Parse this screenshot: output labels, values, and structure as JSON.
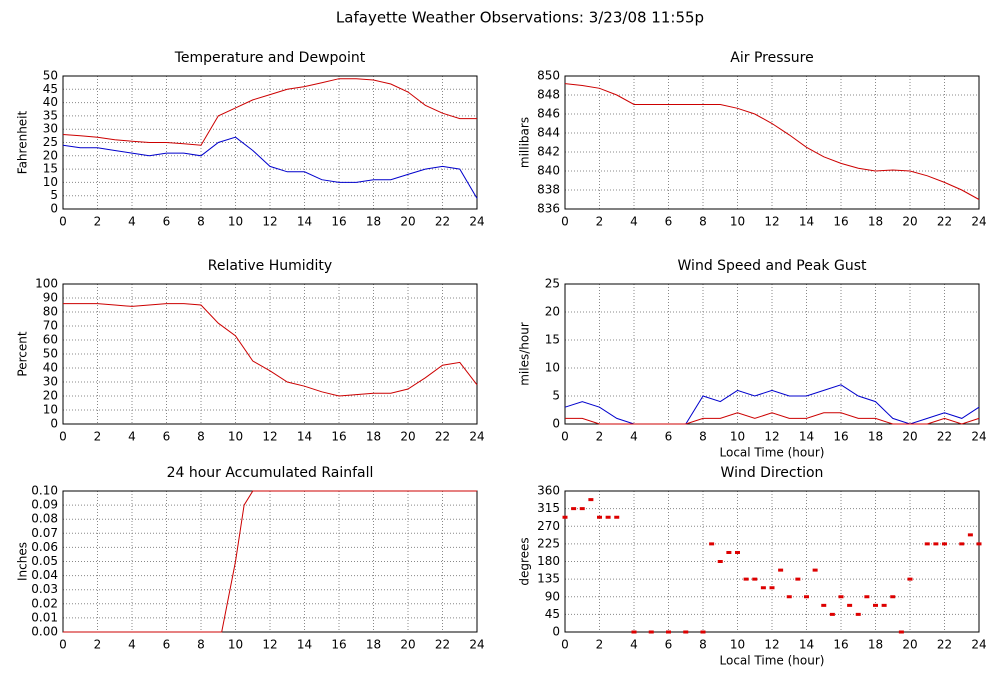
{
  "title": "Lafayette Weather Observations: 3/23/08 11:55p",
  "chart_data": [
    {
      "type": "line",
      "title": "Temperature and Dewpoint",
      "ylabel": "Fahrenheit",
      "x": [
        0,
        1,
        2,
        3,
        4,
        5,
        6,
        7,
        8,
        9,
        10,
        11,
        12,
        13,
        14,
        15,
        16,
        17,
        18,
        19,
        20,
        21,
        22,
        23,
        24
      ],
      "series": [
        {
          "color": "#cc0000",
          "values": [
            28,
            27.5,
            27,
            26,
            25.5,
            25,
            25,
            24.5,
            24,
            35,
            38,
            41,
            43,
            45,
            46,
            47.5,
            49,
            49,
            48.5,
            47,
            44,
            39,
            36,
            34,
            34
          ]
        },
        {
          "color": "#0000cc",
          "values": [
            24,
            23,
            23,
            22,
            21,
            20,
            21,
            21,
            20,
            25,
            27,
            22,
            16,
            14,
            14,
            11,
            10,
            10,
            11,
            11,
            13,
            15,
            16,
            15,
            4
          ]
        }
      ],
      "xlim": [
        0,
        24
      ],
      "xticks": [
        0,
        2,
        4,
        6,
        8,
        10,
        12,
        14,
        16,
        18,
        20,
        22,
        24
      ],
      "ylim": [
        0,
        50
      ],
      "yticks": [
        0,
        5,
        10,
        15,
        20,
        25,
        30,
        35,
        40,
        45,
        50
      ],
      "grid": true
    },
    {
      "type": "line",
      "title": "Air Pressure",
      "ylabel": "millibars",
      "x": [
        0,
        1,
        2,
        3,
        4,
        5,
        6,
        7,
        8,
        9,
        10,
        11,
        12,
        13,
        14,
        15,
        16,
        17,
        18,
        19,
        20,
        21,
        22,
        23,
        24
      ],
      "series": [
        {
          "color": "#cc0000",
          "values": [
            849.2,
            849,
            848.7,
            848,
            847,
            847,
            847,
            847,
            847,
            847,
            846.6,
            846,
            845,
            843.8,
            842.5,
            841.5,
            840.8,
            840.3,
            840,
            840.1,
            840,
            839.5,
            838.8,
            838,
            837
          ]
        }
      ],
      "xlim": [
        0,
        24
      ],
      "xticks": [
        0,
        2,
        4,
        6,
        8,
        10,
        12,
        14,
        16,
        18,
        20,
        22,
        24
      ],
      "ylim": [
        836,
        850
      ],
      "yticks": [
        836,
        838,
        840,
        842,
        844,
        846,
        848,
        850
      ],
      "grid": true
    },
    {
      "type": "line",
      "title": "Relative Humidity",
      "ylabel": "Percent",
      "x": [
        0,
        1,
        2,
        3,
        4,
        5,
        6,
        7,
        8,
        9,
        10,
        11,
        12,
        13,
        14,
        15,
        16,
        17,
        18,
        19,
        20,
        21,
        22,
        23,
        24
      ],
      "series": [
        {
          "color": "#cc0000",
          "values": [
            86,
            86,
            86,
            85,
            84,
            85,
            86,
            86,
            85,
            72,
            63,
            45,
            38,
            30,
            27,
            23,
            20,
            21,
            22,
            22,
            25,
            33,
            42,
            44,
            28
          ]
        }
      ],
      "xlim": [
        0,
        24
      ],
      "xticks": [
        0,
        2,
        4,
        6,
        8,
        10,
        12,
        14,
        16,
        18,
        20,
        22,
        24
      ],
      "ylim": [
        0,
        100
      ],
      "yticks": [
        0,
        10,
        20,
        30,
        40,
        50,
        60,
        70,
        80,
        90,
        100
      ],
      "grid": true
    },
    {
      "type": "line",
      "title": "Wind Speed and Peak Gust",
      "ylabel": "miles/hour",
      "xlabel": "Local Time (hour)",
      "x": [
        0,
        1,
        2,
        3,
        4,
        5,
        6,
        7,
        8,
        9,
        10,
        11,
        12,
        13,
        14,
        15,
        16,
        17,
        18,
        19,
        20,
        21,
        22,
        23,
        24
      ],
      "series": [
        {
          "color": "#0000cc",
          "values": [
            3,
            4,
            3,
            1,
            0,
            0,
            0,
            0,
            5,
            4,
            6,
            5,
            6,
            5,
            5,
            6,
            7,
            5,
            4,
            1,
            0,
            1,
            2,
            1,
            3
          ]
        },
        {
          "color": "#cc0000",
          "values": [
            1,
            1,
            0,
            0,
            0,
            0,
            0,
            0,
            1,
            1,
            2,
            1,
            2,
            1,
            1,
            2,
            2,
            1,
            1,
            0,
            0,
            0,
            1,
            0,
            1
          ]
        }
      ],
      "xlim": [
        0,
        24
      ],
      "xticks": [
        0,
        2,
        4,
        6,
        8,
        10,
        12,
        14,
        16,
        18,
        20,
        22,
        24
      ],
      "ylim": [
        0,
        25
      ],
      "yticks": [
        0,
        5,
        10,
        15,
        20,
        25
      ],
      "grid": true
    },
    {
      "type": "line",
      "title": "24 hour Accumulated Rainfall",
      "ylabel": "Inches",
      "x": [
        0,
        9.2,
        10,
        10.5,
        11,
        24
      ],
      "series": [
        {
          "color": "#cc0000",
          "values": [
            0,
            0,
            0.05,
            0.09,
            0.1,
            0.1
          ]
        }
      ],
      "xlim": [
        0,
        24
      ],
      "xticks": [
        0,
        2,
        4,
        6,
        8,
        10,
        12,
        14,
        16,
        18,
        20,
        22,
        24
      ],
      "ylim": [
        0,
        0.1
      ],
      "yticks": [
        {
          "value": 0,
          "label": "0.00"
        },
        {
          "value": 0.01,
          "label": "0.01"
        },
        {
          "value": 0.02,
          "label": "0.02"
        },
        {
          "value": 0.03,
          "label": "0.03"
        },
        {
          "value": 0.04,
          "label": "0.04"
        },
        {
          "value": 0.05,
          "label": "0.05"
        },
        {
          "value": 0.06,
          "label": "0.06"
        },
        {
          "value": 0.07,
          "label": "0.07"
        },
        {
          "value": 0.08,
          "label": "0.08"
        },
        {
          "value": 0.09,
          "label": "0.09"
        },
        {
          "value": 0.1,
          "label": "0.10"
        }
      ],
      "grid": true
    },
    {
      "type": "scatter",
      "title": "Wind Direction",
      "ylabel": "degrees",
      "xlabel": "Local Time (hour)",
      "x": [
        0,
        0.5,
        1,
        1.5,
        2,
        2.5,
        3,
        4,
        5,
        6,
        7,
        8,
        8.5,
        9,
        9.5,
        10,
        10.5,
        11,
        11.5,
        12,
        12.5,
        13,
        13.5,
        14,
        14.5,
        15,
        15.5,
        16,
        16.5,
        17,
        17.5,
        18,
        18.5,
        19,
        19.5,
        20,
        21,
        21.5,
        22,
        23,
        23.5,
        24
      ],
      "series": [
        {
          "color": "#dd0000",
          "values": [
            293,
            315,
            315,
            338,
            293,
            293,
            293,
            0,
            0,
            0,
            0,
            0,
            225,
            180,
            203,
            203,
            135,
            135,
            113,
            113,
            158,
            90,
            135,
            90,
            158,
            68,
            45,
            90,
            68,
            45,
            90,
            68,
            68,
            90,
            0,
            135,
            225,
            225,
            225,
            225,
            248,
            225
          ]
        }
      ],
      "xlim": [
        0,
        24
      ],
      "xticks": [
        0,
        2,
        4,
        6,
        8,
        10,
        12,
        14,
        16,
        18,
        20,
        22,
        24
      ],
      "ylim": [
        0,
        360
      ],
      "yticks": [
        0,
        45,
        90,
        135,
        180,
        225,
        270,
        315,
        360
      ],
      "grid": true
    }
  ]
}
